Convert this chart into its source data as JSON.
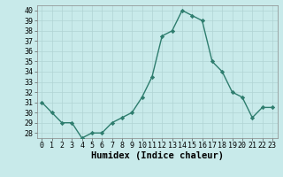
{
  "x": [
    0,
    1,
    2,
    3,
    4,
    5,
    6,
    7,
    8,
    9,
    10,
    11,
    12,
    13,
    14,
    15,
    16,
    17,
    18,
    19,
    20,
    21,
    22,
    23
  ],
  "y": [
    31,
    30,
    29,
    29,
    27.5,
    28,
    28,
    29,
    29.5,
    30,
    31.5,
    33.5,
    37.5,
    38,
    40,
    39.5,
    39,
    35,
    34,
    32,
    31.5,
    29.5,
    30.5,
    30.5
  ],
  "line_color": "#2e7d6e",
  "marker": "D",
  "marker_size": 2.2,
  "bg_color": "#c8eaea",
  "grid_color": "#b0d4d4",
  "xlabel": "Humidex (Indice chaleur)",
  "ylabel_ticks": [
    28,
    29,
    30,
    31,
    32,
    33,
    34,
    35,
    36,
    37,
    38,
    39,
    40
  ],
  "ylim": [
    27.5,
    40.5
  ],
  "xlim": [
    -0.5,
    23.5
  ],
  "tick_fontsize": 6,
  "label_fontsize": 7.5
}
